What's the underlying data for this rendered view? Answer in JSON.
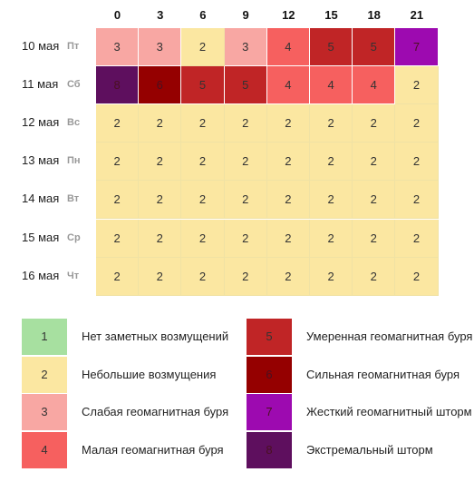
{
  "colors": {
    "1": "#a7e0a0",
    "2": "#fbe7a1",
    "3": "#f8a7a3",
    "4": "#f6605f",
    "5": "#c02526",
    "6": "#950000",
    "7": "#9d0ab0",
    "8": "#5e0f5e"
  },
  "hours": [
    "0",
    "3",
    "6",
    "9",
    "12",
    "15",
    "18",
    "21"
  ],
  "rows": [
    {
      "date": "10 мая",
      "dow": "Пт",
      "values": [
        3,
        3,
        2,
        3,
        4,
        5,
        5,
        7
      ]
    },
    {
      "date": "11 мая",
      "dow": "Сб",
      "values": [
        8,
        6,
        5,
        5,
        4,
        4,
        4,
        2
      ]
    },
    {
      "date": "12 мая",
      "dow": "Вс",
      "values": [
        2,
        2,
        2,
        2,
        2,
        2,
        2,
        2
      ]
    },
    {
      "date": "13 мая",
      "dow": "Пн",
      "values": [
        2,
        2,
        2,
        2,
        2,
        2,
        2,
        2
      ]
    },
    {
      "date": "14 мая",
      "dow": "Вт",
      "values": [
        2,
        2,
        2,
        2,
        2,
        2,
        2,
        2
      ]
    },
    {
      "date": "15 мая",
      "dow": "Ср",
      "values": [
        2,
        2,
        2,
        2,
        2,
        2,
        2,
        2
      ]
    },
    {
      "date": "16 мая",
      "dow": "Чт",
      "values": [
        2,
        2,
        2,
        2,
        2,
        2,
        2,
        2
      ]
    }
  ],
  "legend": [
    {
      "level": "1",
      "label": "Нет заметных возмущений"
    },
    {
      "level": "2",
      "label": "Небольшие возмущения"
    },
    {
      "level": "3",
      "label": "Слабая геомагнитная буря"
    },
    {
      "level": "4",
      "label": "Малая геомагнитная буря"
    },
    {
      "level": "5",
      "label": "Умеренная геомагнитная буря"
    },
    {
      "level": "6",
      "label": "Сильная геомагнитная буря"
    },
    {
      "level": "7",
      "label": "Жесткий геомагнитный шторм"
    },
    {
      "level": "8",
      "label": "Экстремальный шторм"
    }
  ]
}
